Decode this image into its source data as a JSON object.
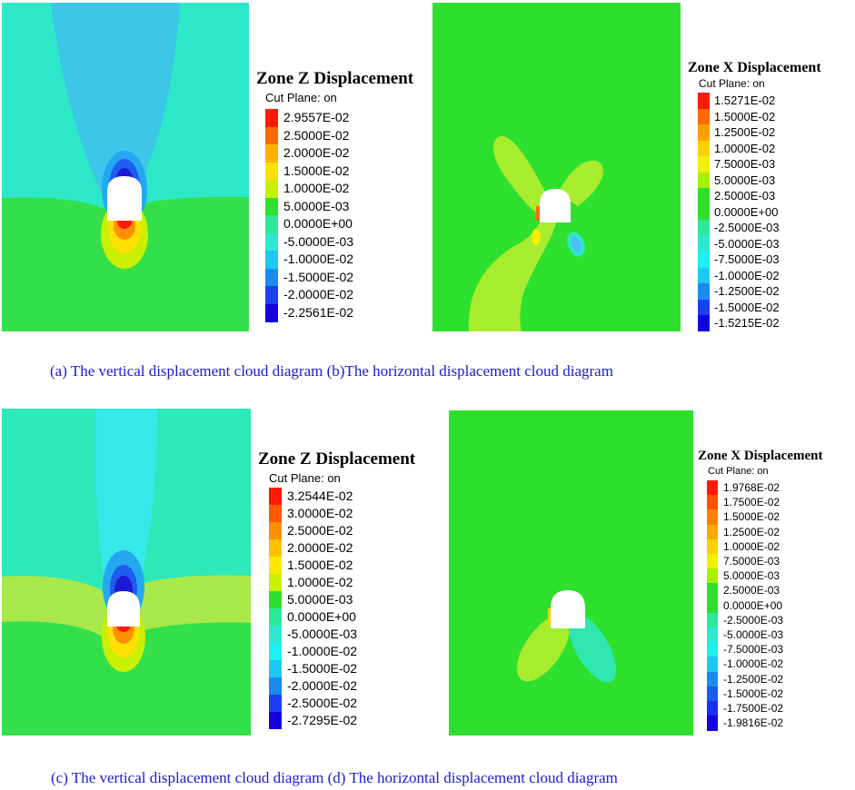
{
  "captions": {
    "top": "(a) The vertical displacement cloud diagram (b)The horizontal displacement cloud diagram",
    "bottom": "(c) The vertical displacement cloud diagram (d) The horizontal displacement cloud diagram"
  },
  "panels": {
    "a": {
      "legend_title": "Zone Z Displacement",
      "legend_sub": "Cut Plane: on",
      "values": [
        "2.9557E-02",
        "2.5000E-02",
        "2.0000E-02",
        "1.5000E-02",
        "1.0000E-02",
        "5.0000E-03",
        "0.0000E+00",
        "-5.0000E-03",
        "-1.0000E-02",
        "-1.5000E-02",
        "-2.0000E-02",
        "-2.2561E-02"
      ],
      "colors": [
        "#ff1a00",
        "#ff6a00",
        "#ffb000",
        "#ffe000",
        "#c8f000",
        "#2ee02e",
        "#2ee89a",
        "#2ee8d2",
        "#1ec8f4",
        "#1a8cf0",
        "#1a40f0",
        "#1400e0"
      ]
    },
    "b": {
      "legend_title": "Zone X Displacement",
      "legend_sub": "Cut Plane: on",
      "values": [
        "1.5271E-02",
        "1.5000E-02",
        "1.2500E-02",
        "1.0000E-02",
        "7.5000E-03",
        "5.0000E-03",
        "2.5000E-03",
        "0.0000E+00",
        "-2.5000E-03",
        "-5.0000E-03",
        "-7.5000E-03",
        "-1.0000E-02",
        "-1.2500E-02",
        "-1.5000E-02",
        "-1.5215E-02"
      ],
      "colors": [
        "#ff1a00",
        "#ff6a00",
        "#ffa000",
        "#ffd000",
        "#f0f000",
        "#a8f000",
        "#2ee02e",
        "#2ee02e",
        "#2ee89a",
        "#2ee8d2",
        "#1ef0f0",
        "#1ec8f4",
        "#1a8cf0",
        "#1a40f0",
        "#1400e0"
      ]
    },
    "c": {
      "legend_title": "Zone Z Displacement",
      "legend_sub": "Cut Plane: on",
      "values": [
        "3.2544E-02",
        "3.0000E-02",
        "2.5000E-02",
        "2.0000E-02",
        "1.5000E-02",
        "1.0000E-02",
        "5.0000E-03",
        "0.0000E+00",
        "-5.0000E-03",
        "-1.0000E-02",
        "-1.5000E-02",
        "-2.0000E-02",
        "-2.5000E-02",
        "-2.7295E-02"
      ],
      "colors": [
        "#ff1a00",
        "#ff5a00",
        "#ff9000",
        "#ffc000",
        "#ffe800",
        "#c8f000",
        "#2ee02e",
        "#2ee89a",
        "#2ee8d2",
        "#1ef0f0",
        "#1ec8f4",
        "#1a8cf0",
        "#1a40f0",
        "#1400e0"
      ]
    },
    "d": {
      "legend_title": "Zone X Displacement",
      "legend_sub": "Cut Plane: on",
      "values": [
        "1.9768E-02",
        "1.7500E-02",
        "1.5000E-02",
        "1.2500E-02",
        "1.0000E-02",
        "7.5000E-03",
        "5.0000E-03",
        "2.5000E-03",
        "0.0000E+00",
        "-2.5000E-03",
        "-5.0000E-03",
        "-7.5000E-03",
        "-1.0000E-02",
        "-1.2500E-02",
        "-1.5000E-02",
        "-1.7500E-02",
        "-1.9816E-02"
      ],
      "colors": [
        "#ff1a00",
        "#ff5000",
        "#ff8000",
        "#ffa800",
        "#ffd000",
        "#f0f000",
        "#a8f000",
        "#2ee02e",
        "#2ee02e",
        "#2ee89a",
        "#2ee8d2",
        "#1ef0f0",
        "#1ec8f4",
        "#1a8cf0",
        "#1a5cf0",
        "#1a30f0",
        "#1400e0"
      ]
    }
  }
}
